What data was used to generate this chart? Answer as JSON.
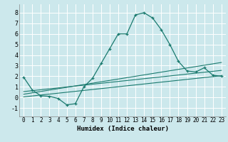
{
  "xlabel": "Humidex (Indice chaleur)",
  "background_color": "#cce8ec",
  "grid_color": "#ffffff",
  "line_color": "#1a7a6e",
  "xlim": [
    -0.5,
    23.5
  ],
  "ylim": [
    -1.8,
    8.8
  ],
  "xticks": [
    0,
    1,
    2,
    3,
    4,
    5,
    6,
    7,
    8,
    9,
    10,
    11,
    12,
    13,
    14,
    15,
    16,
    17,
    18,
    19,
    20,
    21,
    22,
    23
  ],
  "yticks": [
    -1,
    0,
    1,
    2,
    3,
    4,
    5,
    6,
    7,
    8
  ],
  "curve1_x": [
    0,
    1,
    2,
    3,
    4,
    5,
    6,
    7,
    8,
    9,
    10,
    11,
    12,
    13,
    14,
    15,
    16,
    17,
    18,
    19,
    20,
    21,
    22,
    23
  ],
  "curve1_y": [
    1.9,
    0.7,
    0.15,
    0.1,
    -0.1,
    -0.7,
    -0.6,
    1.0,
    1.8,
    3.2,
    4.6,
    6.0,
    6.0,
    7.8,
    8.0,
    7.5,
    6.4,
    5.0,
    3.4,
    2.5,
    2.4,
    2.8,
    2.1,
    2.0
  ],
  "curve2_x": [
    0,
    23
  ],
  "curve2_y": [
    0.05,
    2.05
  ],
  "curve3_x": [
    0,
    23
  ],
  "curve3_y": [
    0.3,
    3.3
  ],
  "curve4_x": [
    0,
    23
  ],
  "curve4_y": [
    0.55,
    2.55
  ],
  "xlabel_fontsize": 6.5,
  "tick_fontsize": 5.5,
  "ytick_fontsize": 6.0
}
